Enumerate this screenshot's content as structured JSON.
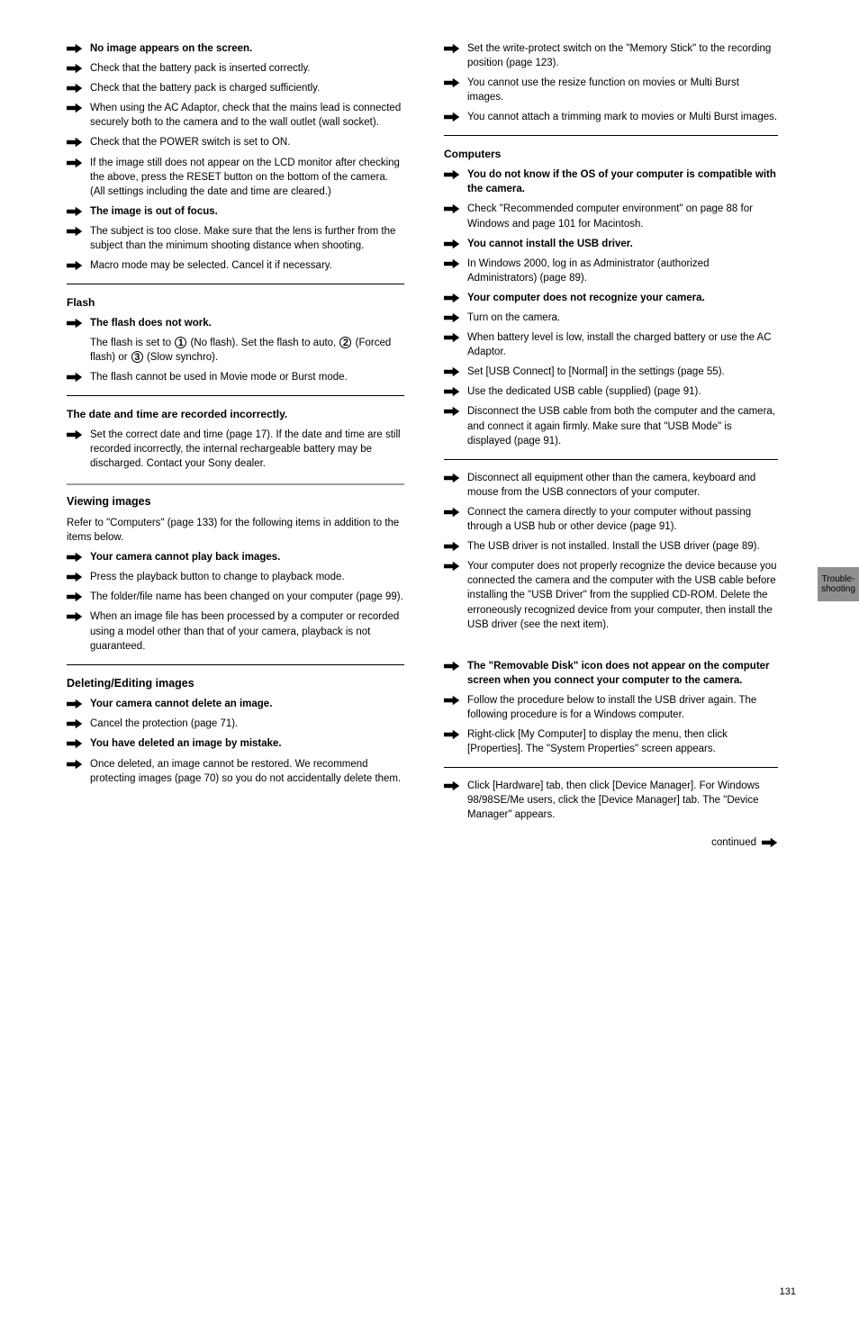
{
  "page_number": "131",
  "side_tab": "Trouble-shooting",
  "left": {
    "items_top": [
      {
        "bold": "No image appears on the screen.",
        "rest": ""
      },
      {
        "bold": "",
        "rest": "Check that the battery pack is inserted correctly."
      },
      {
        "bold": "",
        "rest": "Check that the battery pack is charged sufficiently."
      },
      {
        "bold": "",
        "rest": "When using the AC Adaptor, check that the mains lead is connected securely both to the camera and to the wall outlet (wall socket)."
      },
      {
        "bold": "",
        "rest": "Check that the POWER switch is set to ON."
      },
      {
        "bold": "",
        "rest": "If the image still does not appear on the LCD monitor after checking the above, press the RESET button on the bottom of the camera. (All settings including the date and time are cleared.)"
      },
      {
        "bold": "The image is out of focus.",
        "rest": ""
      },
      {
        "bold": "",
        "rest": "The subject is too close. Make sure that the lens is further from the subject than the minimum shooting distance when shooting."
      },
      {
        "bold": "",
        "rest": "Macro mode may be selected. Cancel it if necessary."
      }
    ],
    "hr1": true,
    "sec1_title": "Flash",
    "sec1_items": [
      {
        "bold": "The flash does not work.",
        "rest": ""
      }
    ],
    "sec1_circles_line": {
      "pre": "The flash is set to ",
      "c1": "1",
      "mid1": " (No flash). Set the flash to auto, ",
      "c2": "2",
      "mid2": " (Forced flash) or ",
      "c3": "3",
      "end": " (Slow synchro)."
    },
    "sec1_items2": [
      {
        "bold": "",
        "rest": "The flash cannot be used in Movie mode or Burst mode."
      }
    ],
    "hr2": true,
    "sec2_title": "The date and time are recorded incorrectly.",
    "sec2_items": [
      {
        "bold": "",
        "rest": "Set the correct date and time (page 17). If the date and time are still recorded incorrectly, the internal rechargeable battery may be discharged. Contact your Sony dealer."
      }
    ],
    "thick": true,
    "subheadA": "Viewing images",
    "subA_para": "Refer to \"Computers\" (page 133) for the following items in addition to the items below.",
    "subA_items": [
      {
        "bold": "Your camera cannot play back images.",
        "rest": ""
      },
      {
        "bold": "",
        "rest": "Press the playback button to change to playback mode."
      },
      {
        "bold": "",
        "rest": "The folder/file name has been changed on your computer (page 99)."
      },
      {
        "bold": "",
        "rest": "When an image file has been processed by a computer or recorded using a model other than that of your camera, playback is not guaranteed."
      }
    ],
    "hr3": true,
    "subheadB": "Deleting/Editing images",
    "subB_items": [
      {
        "bold": "Your camera cannot delete an image.",
        "rest": ""
      },
      {
        "bold": "",
        "rest": "Cancel the protection (page 71)."
      },
      {
        "bold": "You have deleted an image by mistake.",
        "rest": ""
      },
      {
        "bold": "",
        "rest": "Once deleted, an image cannot be restored. We recommend protecting images (page 70) so you do not accidentally delete them."
      }
    ]
  },
  "right": {
    "items_top": [
      {
        "bold": "",
        "rest": "Set the write-protect switch on the \"Memory Stick\" to the recording position (page 123)."
      },
      {
        "bold": "",
        "rest": "You cannot use the resize function on movies or Multi Burst images."
      },
      {
        "bold": "",
        "rest": "You cannot attach a trimming mark to movies or Multi Burst images."
      }
    ],
    "hr1": true,
    "sec1_title": "Computers",
    "sec1_items": [
      {
        "bold": "You do not know if the OS of your computer is compatible with the camera.",
        "rest": ""
      },
      {
        "bold": "",
        "rest": "Check \"Recommended computer environment\" on page 88 for Windows and page 101 for Macintosh."
      },
      {
        "bold": "You cannot install the USB driver.",
        "rest": ""
      },
      {
        "bold": "",
        "rest": "In Windows 2000, log in as Administrator (authorized Administrators) (page 89)."
      },
      {
        "bold": "Your computer does not recognize your camera.",
        "rest": ""
      },
      {
        "bold": "",
        "rest": "Turn on the camera."
      },
      {
        "bold": "",
        "rest": "When battery level is low, install the charged battery or use the AC Adaptor."
      },
      {
        "bold": "",
        "rest": "Set [USB Connect] to [Normal] in the settings (page 55)."
      },
      {
        "bold": "",
        "rest": "Use the dedicated USB cable (supplied) (page 91)."
      },
      {
        "bold": "",
        "rest": "Disconnect the USB cable from both the computer and the camera, and connect it again firmly. Make sure that \"USB Mode\" is displayed (page 91)."
      }
    ],
    "hr2": true,
    "sec2_title": "",
    "sec2_items": [
      {
        "bold": "",
        "rest": "Disconnect all equipment other than the camera, keyboard and mouse from the USB connectors of your computer."
      },
      {
        "bold": "",
        "rest": "Connect the camera directly to your computer without passing through a USB hub or other device (page 91)."
      },
      {
        "bold": "",
        "rest": "The USB driver is not installed. Install the USB driver (page 89)."
      },
      {
        "bold": "",
        "rest": "Your computer does not properly recognize the device because you connected the camera and the computer with the USB cable before installing the \"USB Driver\" from the supplied CD-ROM. Delete the erroneously recognized device from your computer, then install the USB driver (see the next item)."
      }
    ],
    "sec3_title": "",
    "sec3_items": [
      {
        "bold": "The \"Removable Disk\" icon does not appear on the computer screen when you connect your computer to the camera.",
        "rest": ""
      },
      {
        "bold": "",
        "rest": "Follow the procedure below to install the USB driver again. The following procedure is for a Windows computer."
      },
      {
        "bold": "",
        "rest": "Right-click [My Computer] to display the menu, then click [Properties]. The \"System Properties\" screen appears."
      }
    ],
    "hr3": true,
    "sec4_title": "",
    "sec4_items": [
      {
        "bold": "",
        "rest": "Click [Hardware] tab, then click [Device Manager]. For Windows 98/98SE/Me users, click the [Device Manager] tab. The \"Device Manager\" appears."
      }
    ],
    "continued": "continued"
  }
}
